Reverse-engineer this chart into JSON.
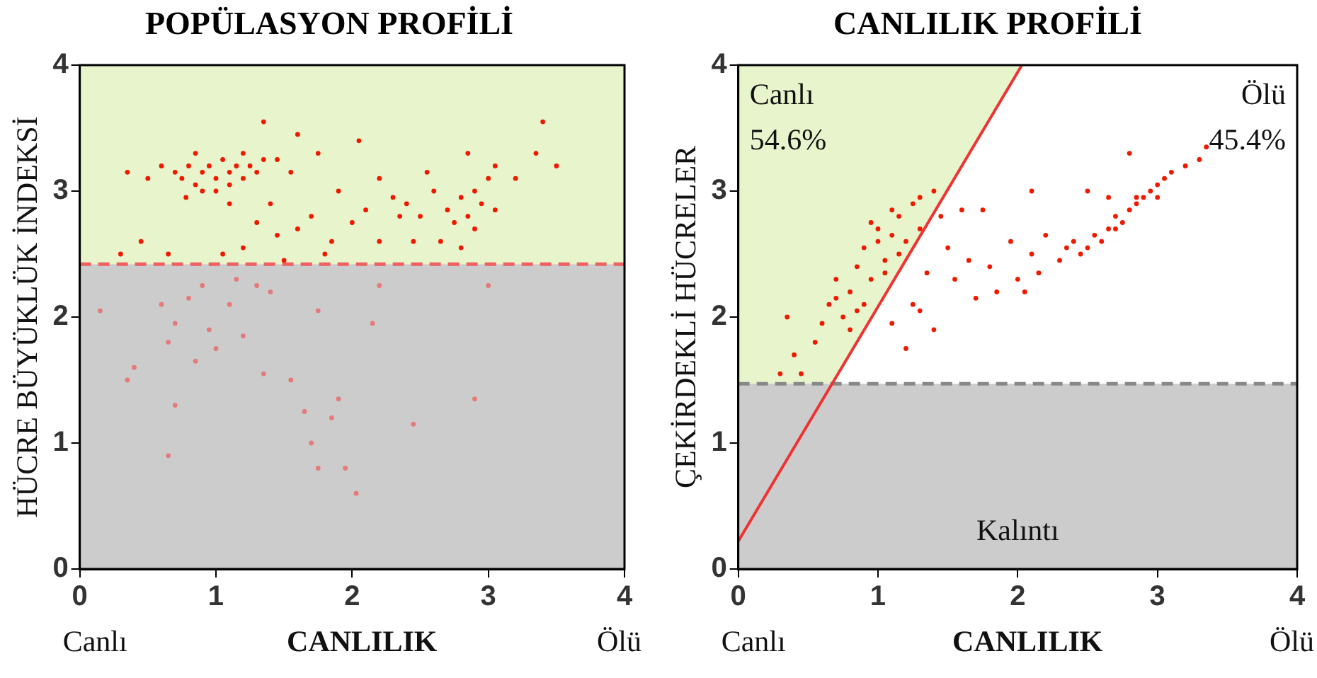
{
  "chart_data": [
    {
      "type": "scatter",
      "title": "POPÜLASYON PROFİLİ",
      "xlabel": "CANLILIK",
      "ylabel": "HÜCRE BÜYÜKLÜK İNDEKSİ",
      "xlim": [
        0,
        4
      ],
      "ylim": [
        0,
        4
      ],
      "xticks": [
        0,
        1,
        2,
        3,
        4
      ],
      "yticks": [
        0,
        1,
        2,
        3,
        4
      ],
      "grid": false,
      "legend": false,
      "marker": "circle",
      "bands": [
        {
          "axis": "y",
          "from": 2.42,
          "to": 4,
          "color": "#e8f4cc",
          "label": null
        },
        {
          "axis": "y",
          "from": 0,
          "to": 2.42,
          "color": "#cccccc",
          "label": null
        }
      ],
      "ref_lines": [
        {
          "axis": "y",
          "value": 2.42,
          "label": null,
          "color": "#f06060",
          "line_style": "dashed"
        }
      ],
      "annotations": [
        "Canlı",
        "Ölü"
      ],
      "series": [
        {
          "color": "#ee1a00",
          "x": [
            0.7,
            0.75,
            0.8,
            0.85,
            0.9,
            0.95,
            1.0,
            1.05,
            1.1,
            1.15,
            1.2,
            1.25,
            1.3,
            0.9,
            1.0,
            1.1,
            1.2,
            0.85,
            1.35,
            1.45,
            0.6,
            0.5,
            0.35,
            0.78,
            1.1,
            1.35,
            1.6,
            1.75,
            2.05,
            1.55,
            1.9,
            2.2,
            1.3,
            1.45,
            1.6,
            1.7,
            1.85,
            2.0,
            2.1,
            1.2,
            1.05,
            1.5,
            1.8,
            2.2,
            2.35,
            1.4,
            0.65,
            0.3,
            0.45,
            2.4,
            2.5,
            2.6,
            2.7,
            2.75,
            2.8,
            2.85,
            2.9,
            2.95,
            3.0,
            3.05,
            2.65,
            2.8,
            2.9,
            3.05,
            2.55,
            2.85,
            2.45,
            3.2,
            3.35,
            3.4,
            3.5,
            2.3
          ],
          "values": [
            3.15,
            3.1,
            3.2,
            3.05,
            3.15,
            3.2,
            3.1,
            3.25,
            3.15,
            3.2,
            3.1,
            3.2,
            3.15,
            3.0,
            3.0,
            3.05,
            3.3,
            3.3,
            3.25,
            3.25,
            3.2,
            3.1,
            3.15,
            2.95,
            2.9,
            3.55,
            3.45,
            3.3,
            3.4,
            3.15,
            3.0,
            3.1,
            2.75,
            2.65,
            2.7,
            2.8,
            2.6,
            2.75,
            2.85,
            2.55,
            2.5,
            2.45,
            2.5,
            2.6,
            2.8,
            2.9,
            2.5,
            2.5,
            2.6,
            2.9,
            2.8,
            3.0,
            2.85,
            2.75,
            2.95,
            2.8,
            3.0,
            2.9,
            3.1,
            2.85,
            2.6,
            2.55,
            2.7,
            3.2,
            3.15,
            3.3,
            2.6,
            3.1,
            3.3,
            3.55,
            3.2,
            2.95
          ]
        },
        {
          "color": "#e47a7a",
          "x": [
            0.15,
            0.4,
            0.35,
            0.6,
            0.65,
            0.7,
            0.8,
            0.85,
            0.9,
            0.95,
            1.0,
            1.1,
            1.15,
            1.2,
            1.3,
            1.35,
            1.4,
            1.55,
            1.65,
            1.7,
            1.75,
            1.85,
            1.95,
            2.03,
            1.9,
            2.15,
            2.2,
            2.45,
            2.9,
            0.65,
            0.7,
            1.75,
            3.0
          ],
          "values": [
            2.05,
            1.6,
            1.5,
            2.1,
            1.8,
            1.95,
            2.15,
            1.65,
            2.25,
            1.9,
            1.75,
            2.1,
            2.3,
            1.85,
            2.25,
            1.55,
            2.2,
            1.5,
            1.25,
            1.0,
            0.8,
            1.2,
            0.8,
            0.6,
            1.35,
            1.95,
            2.25,
            1.15,
            1.35,
            0.9,
            1.3,
            2.05,
            2.25
          ]
        }
      ]
    },
    {
      "type": "scatter",
      "title": "CANLILIK PROFİLİ",
      "xlabel": "CANLILIK",
      "ylabel": "ÇEKİRDEKLİ HÜCRELER",
      "xlim": [
        0,
        4
      ],
      "ylim": [
        0,
        4
      ],
      "xticks": [
        0,
        1,
        2,
        3,
        4
      ],
      "yticks": [
        0,
        1,
        2,
        3,
        4
      ],
      "grid": false,
      "legend": false,
      "bands": [
        {
          "axis": "y",
          "from": 0,
          "to": 1.47,
          "color": "#cccccc",
          "label": "Kalıntı"
        }
      ],
      "ref_lines": [
        {
          "axis": "y",
          "value": 1.47,
          "label": null,
          "color": "#888888",
          "line_style": "dashed"
        }
      ],
      "annotations": [
        "Canlı",
        "Ölü",
        "Canlı",
        "54.6%",
        "Ölü",
        "45.4%"
      ],
      "series": [
        {
          "marker": "circle",
          "color": "#ee1a00",
          "x": [
            0.3,
            0.45,
            0.4,
            0.35,
            0.55,
            0.6,
            0.65,
            0.7,
            0.75,
            0.8,
            0.85,
            0.8,
            0.9,
            0.95,
            1.0,
            1.05,
            1.0,
            1.1,
            1.15,
            1.2,
            1.25,
            0.9,
            0.85,
            1.05,
            1.3,
            1.4,
            0.95,
            1.1,
            0.7,
            1.15,
            1.3,
            1.45,
            1.6,
            1.75,
            1.5,
            1.65,
            1.8,
            1.95,
            2.1,
            2.2,
            2.05,
            1.7,
            1.55,
            1.35,
            1.25,
            1.1,
            1.2,
            1.4,
            1.3,
            1.85,
            2.15,
            2.3,
            2.0,
            2.1,
            2.35,
            2.4,
            2.5,
            2.55,
            2.6,
            2.65,
            2.7,
            2.75,
            2.8,
            2.85,
            2.9,
            2.95,
            3.0,
            3.05,
            3.1,
            3.2,
            3.3,
            3.35,
            2.8,
            2.85,
            2.5,
            2.65,
            3.0,
            2.45,
            2.7
          ],
          "values": [
            1.55,
            1.55,
            1.7,
            2.0,
            1.8,
            1.95,
            2.1,
            2.3,
            2.0,
            2.2,
            2.4,
            1.9,
            2.55,
            2.3,
            2.6,
            2.45,
            2.7,
            2.65,
            2.8,
            2.6,
            2.9,
            2.1,
            2.05,
            2.35,
            2.95,
            3.0,
            2.75,
            2.85,
            2.15,
            2.5,
            2.7,
            2.8,
            2.85,
            2.85,
            2.55,
            2.45,
            2.4,
            2.6,
            2.5,
            2.65,
            2.2,
            2.15,
            2.3,
            2.35,
            2.1,
            1.95,
            1.75,
            1.9,
            2.05,
            2.2,
            2.35,
            2.45,
            2.3,
            3.0,
            2.55,
            2.6,
            2.55,
            2.65,
            2.6,
            2.7,
            2.8,
            2.75,
            2.85,
            2.9,
            2.95,
            3.0,
            3.05,
            3.1,
            3.15,
            3.2,
            3.25,
            3.35,
            3.3,
            2.95,
            3.0,
            2.95,
            2.95,
            2.5,
            2.7
          ]
        },
        {
          "type": "line",
          "marker": "none",
          "color": "#ee3333",
          "x": [
            0,
            2.03
          ],
          "values": [
            0.22,
            4
          ]
        }
      ]
    }
  ]
}
